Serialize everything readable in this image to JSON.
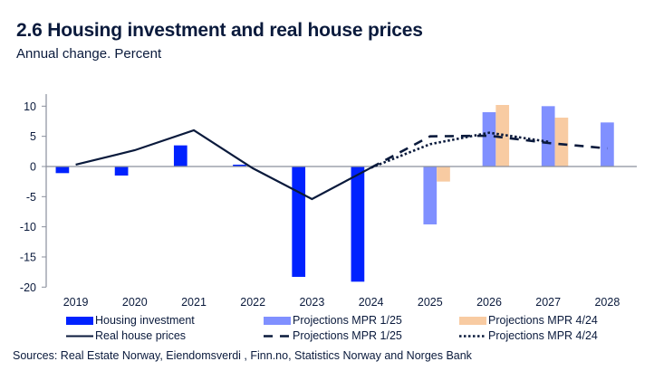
{
  "header": {
    "title": "2.6 Housing investment and real house prices",
    "subtitle": "Annual change. Percent"
  },
  "colors": {
    "housing_investment": "#0022ff",
    "projections_mpr_1_25_bar": "#8090ff",
    "projections_mpr_4_24_bar": "#f8cba2",
    "line": "#0a1a3c",
    "axis": "#8a8f9c"
  },
  "chart_data": {
    "type": "bar",
    "title": "2.6 Housing investment and real house prices",
    "subtitle": "Annual change. Percent",
    "xlabel": "",
    "ylabel": "",
    "categories": [
      "2019",
      "2020",
      "2021",
      "2022",
      "2023",
      "2024",
      "2025",
      "2026",
      "2027",
      "2028"
    ],
    "ylim": [
      -20,
      12
    ],
    "yticks": [
      10,
      5,
      0,
      -5,
      -10,
      -15,
      -20
    ],
    "ytick_labels": [
      "10",
      "5",
      "0",
      "-5",
      "-10",
      "-15",
      "-20"
    ],
    "grid": false,
    "legend_position": "bottom",
    "series": [
      {
        "name": "Housing investment",
        "type": "bar",
        "color": "#0022ff",
        "values": [
          -1.1,
          -1.5,
          3.5,
          0.3,
          -18.3,
          -19.1,
          null,
          null,
          null,
          null
        ]
      },
      {
        "name": "Projections MPR 1/25",
        "type": "bar",
        "color": "#8090ff",
        "values": [
          null,
          null,
          null,
          null,
          null,
          null,
          -9.6,
          9.0,
          10.0,
          7.3
        ]
      },
      {
        "name": "Projections MPR 4/24",
        "type": "bar",
        "color": "#f8cba2",
        "values": [
          null,
          null,
          null,
          null,
          null,
          null,
          -2.5,
          10.2,
          8.1,
          null
        ]
      },
      {
        "name": "Real house prices",
        "type": "line",
        "style": "solid",
        "color": "#0a1a3c",
        "values": [
          0.3,
          2.7,
          6.0,
          -0.3,
          -5.4,
          -0.2,
          null,
          null,
          null,
          null
        ]
      },
      {
        "name": "Projections MPR 1/25",
        "type": "line",
        "style": "dashed",
        "color": "#0a1a3c",
        "values": [
          null,
          null,
          null,
          null,
          null,
          -0.2,
          5.0,
          5.1,
          3.9,
          3.0
        ]
      },
      {
        "name": "Projections MPR 4/24",
        "type": "line",
        "style": "dotted",
        "color": "#0a1a3c",
        "values": [
          null,
          null,
          null,
          null,
          null,
          -0.2,
          3.7,
          5.6,
          4.1,
          null
        ]
      }
    ]
  },
  "legend": {
    "items": [
      {
        "label": "Housing investment",
        "kind": "bar",
        "color": "#0022ff"
      },
      {
        "label": "Projections MPR 1/25",
        "kind": "bar",
        "color": "#8090ff"
      },
      {
        "label": "Projections MPR 4/24",
        "kind": "bar",
        "color": "#f8cba2"
      },
      {
        "label": "Real house prices",
        "kind": "solid"
      },
      {
        "label": "Projections MPR 1/25",
        "kind": "dashed"
      },
      {
        "label": "Projections MPR 4/24",
        "kind": "dotted"
      }
    ]
  },
  "footer": {
    "source": "Sources: Real Estate Norway,  Eiendomsverdi , Finn.no, Statistics Norway and Norges Bank"
  }
}
